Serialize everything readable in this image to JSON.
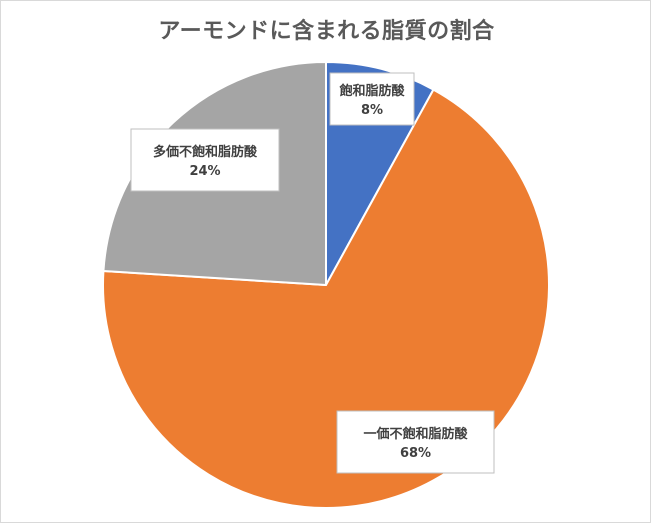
{
  "chart_data": {
    "type": "pie",
    "title": "アーモンドに含まれる脂質の割合",
    "categories": [
      "飽和脂肪酸",
      "一価不飽和脂肪酸",
      "多価不飽和脂肪酸"
    ],
    "values": [
      8,
      68,
      24
    ],
    "value_labels": [
      "8%",
      "68%",
      "24%"
    ],
    "colors": [
      "#4472c4",
      "#ed7d31",
      "#a5a5a5"
    ],
    "start_angle_deg": 0,
    "direction": "clockwise",
    "legend": "none"
  }
}
